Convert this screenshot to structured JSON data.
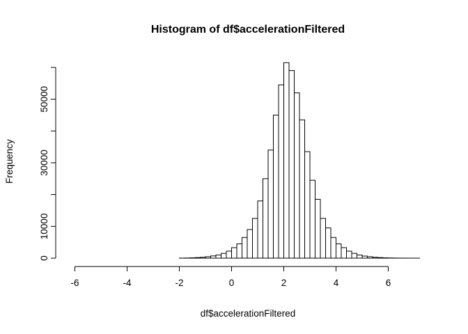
{
  "chart_data": {
    "type": "bar",
    "title": "Histogram of df$accelerationFiltered",
    "xlabel": "df$accelerationFiltered",
    "ylabel": "Frequency",
    "bin_width": 0.2,
    "bin_start": -6.2,
    "xlim": [
      -6.2,
      7.4
    ],
    "ylim": [
      0,
      60000
    ],
    "x_ticks": [
      -6,
      -4,
      -2,
      0,
      2,
      4,
      6
    ],
    "y_ticks": [
      0,
      10000,
      30000,
      50000
    ],
    "y_tick_marks": [
      0,
      10000,
      20000,
      30000,
      40000,
      50000,
      60000
    ],
    "counts": [
      0,
      0,
      0,
      0,
      0,
      0,
      0,
      0,
      0,
      0,
      0,
      0,
      0,
      0,
      0,
      0,
      0,
      0,
      0,
      0,
      0,
      20,
      50,
      100,
      180,
      280,
      450,
      700,
      1000,
      1500,
      2200,
      3300,
      4500,
      6500,
      9000,
      12500,
      18000,
      25000,
      34000,
      45000,
      54500,
      61500,
      59000,
      52000,
      43500,
      33500,
      24500,
      18500,
      12500,
      9500,
      6500,
      4500,
      3300,
      2200,
      1500,
      1000,
      650,
      450,
      280,
      180,
      100,
      60,
      30,
      15,
      8,
      4,
      2,
      1
    ],
    "bar_fill": "#ffffff",
    "bar_stroke": "#000000",
    "grid": false,
    "legend": "none"
  }
}
